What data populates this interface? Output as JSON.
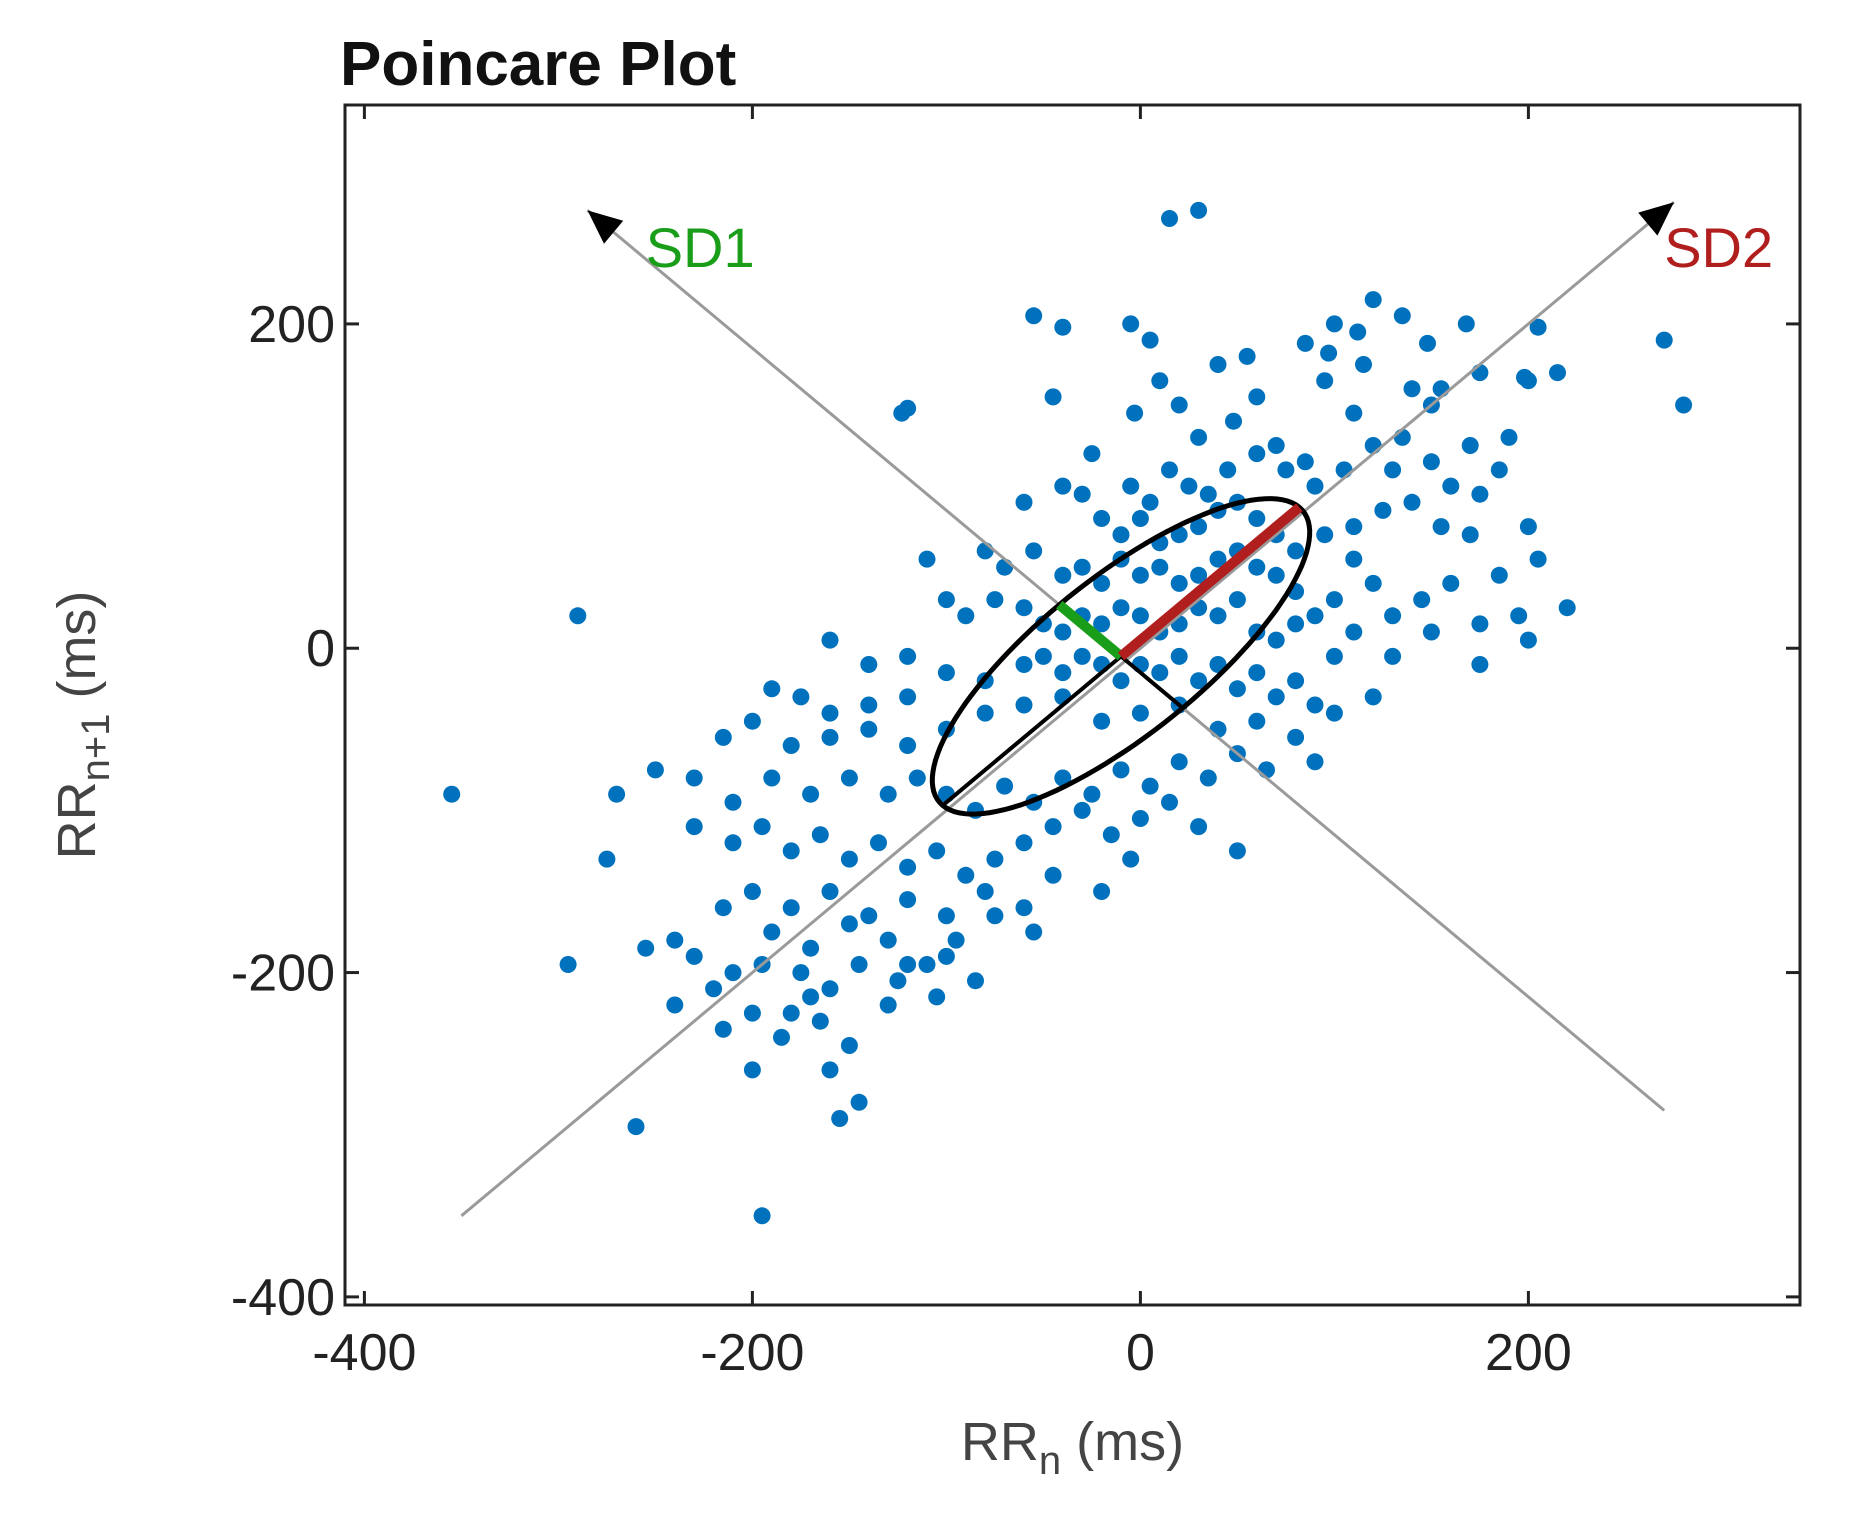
{
  "chart_data": {
    "type": "scatter",
    "title": "Poincare Plot",
    "xlabel": {
      "main": "RR",
      "sub": "n",
      "unit": " (ms)"
    },
    "ylabel": {
      "main": "RR",
      "sub": "n+1",
      "unit": " (ms)"
    },
    "xlim": [
      -410,
      340
    ],
    "ylim": [
      -405,
      335
    ],
    "xticks": [
      -400,
      -200,
      0,
      200
    ],
    "yticks": [
      -400,
      -200,
      0,
      200
    ],
    "xtick_labels": [
      "-400",
      "-200",
      "0",
      "200"
    ],
    "ytick_labels": [
      "-400",
      "-200",
      "0",
      "200"
    ],
    "grid": false,
    "point_color": "#0072BD",
    "annotations": {
      "sd1": {
        "text": "SD1",
        "color": "#1a9e1a"
      },
      "sd2": {
        "text": "SD2",
        "color": "#b01e1e"
      },
      "ellipse": {
        "center": [
          -10,
          -5
        ],
        "sd1": 45,
        "sd2": 130,
        "angle_deg": 45
      },
      "identity_line": {
        "from": [
          -350,
          -350
        ],
        "to": [
          275,
          275
        ]
      },
      "perpendicular_line": {
        "from": [
          -285,
          270
        ],
        "to": [
          270,
          -285
        ]
      }
    },
    "series": [
      {
        "points": [
          [
            30,
            270
          ],
          [
            15,
            265
          ],
          [
            -55,
            205
          ],
          [
            -40,
            198
          ],
          [
            -5,
            200
          ],
          [
            -45,
            155
          ],
          [
            5,
            190
          ],
          [
            120,
            215
          ],
          [
            100,
            200
          ],
          [
            112,
            195
          ],
          [
            135,
            205
          ],
          [
            168,
            200
          ],
          [
            205,
            198
          ],
          [
            270,
            190
          ],
          [
            215,
            170
          ],
          [
            198,
            167
          ],
          [
            148,
            188
          ],
          [
            97,
            182
          ],
          [
            85,
            188
          ],
          [
            55,
            180
          ],
          [
            40,
            175
          ],
          [
            20,
            150
          ],
          [
            10,
            165
          ],
          [
            -3,
            145
          ],
          [
            -123,
            145
          ],
          [
            -120,
            148
          ],
          [
            30,
            130
          ],
          [
            60,
            155
          ],
          [
            48,
            140
          ],
          [
            70,
            125
          ],
          [
            85,
            115
          ],
          [
            115,
            175
          ],
          [
            140,
            160
          ],
          [
            155,
            160
          ],
          [
            175,
            170
          ],
          [
            135,
            130
          ],
          [
            150,
            150
          ],
          [
            200,
            165
          ],
          [
            280,
            150
          ],
          [
            110,
            145
          ],
          [
            95,
            165
          ],
          [
            170,
            125
          ],
          [
            190,
            130
          ],
          [
            185,
            110
          ],
          [
            175,
            95
          ],
          [
            160,
            100
          ],
          [
            150,
            115
          ],
          [
            130,
            110
          ],
          [
            120,
            125
          ],
          [
            105,
            110
          ],
          [
            90,
            100
          ],
          [
            75,
            110
          ],
          [
            60,
            120
          ],
          [
            45,
            110
          ],
          [
            35,
            95
          ],
          [
            25,
            100
          ],
          [
            15,
            110
          ],
          [
            5,
            90
          ],
          [
            -5,
            100
          ],
          [
            -25,
            120
          ],
          [
            -40,
            100
          ],
          [
            -30,
            95
          ],
          [
            -60,
            90
          ],
          [
            -20,
            80
          ],
          [
            -10,
            70
          ],
          [
            0,
            80
          ],
          [
            10,
            65
          ],
          [
            20,
            70
          ],
          [
            30,
            75
          ],
          [
            40,
            85
          ],
          [
            50,
            90
          ],
          [
            60,
            80
          ],
          [
            70,
            70
          ],
          [
            80,
            60
          ],
          [
            95,
            70
          ],
          [
            110,
            75
          ],
          [
            125,
            85
          ],
          [
            140,
            90
          ],
          [
            155,
            75
          ],
          [
            170,
            70
          ],
          [
            200,
            75
          ],
          [
            205,
            55
          ],
          [
            185,
            45
          ],
          [
            195,
            20
          ],
          [
            175,
            15
          ],
          [
            160,
            40
          ],
          [
            145,
            30
          ],
          [
            130,
            20
          ],
          [
            120,
            40
          ],
          [
            110,
            55
          ],
          [
            100,
            30
          ],
          [
            90,
            20
          ],
          [
            80,
            35
          ],
          [
            70,
            45
          ],
          [
            60,
            50
          ],
          [
            50,
            60
          ],
          [
            40,
            55
          ],
          [
            30,
            45
          ],
          [
            20,
            40
          ],
          [
            10,
            50
          ],
          [
            0,
            45
          ],
          [
            -10,
            55
          ],
          [
            -20,
            40
          ],
          [
            -30,
            50
          ],
          [
            -40,
            45
          ],
          [
            -55,
            60
          ],
          [
            -70,
            50
          ],
          [
            -80,
            60
          ],
          [
            -110,
            55
          ],
          [
            -100,
            30
          ],
          [
            -90,
            20
          ],
          [
            -75,
            30
          ],
          [
            -60,
            25
          ],
          [
            -50,
            15
          ],
          [
            -40,
            10
          ],
          [
            -30,
            20
          ],
          [
            -20,
            15
          ],
          [
            -10,
            25
          ],
          [
            0,
            20
          ],
          [
            10,
            10
          ],
          [
            20,
            15
          ],
          [
            30,
            25
          ],
          [
            40,
            20
          ],
          [
            50,
            30
          ],
          [
            60,
            10
          ],
          [
            70,
            5
          ],
          [
            80,
            15
          ],
          [
            100,
            -5
          ],
          [
            110,
            10
          ],
          [
            130,
            -5
          ],
          [
            150,
            10
          ],
          [
            175,
            -10
          ],
          [
            200,
            5
          ],
          [
            220,
            25
          ],
          [
            -290,
            20
          ],
          [
            -160,
            5
          ],
          [
            -140,
            -10
          ],
          [
            -120,
            -5
          ],
          [
            -100,
            -15
          ],
          [
            -80,
            -20
          ],
          [
            -60,
            -10
          ],
          [
            -50,
            -5
          ],
          [
            -40,
            -15
          ],
          [
            -30,
            -5
          ],
          [
            -20,
            -10
          ],
          [
            -10,
            -20
          ],
          [
            0,
            -10
          ],
          [
            10,
            -15
          ],
          [
            20,
            -5
          ],
          [
            30,
            -20
          ],
          [
            40,
            -10
          ],
          [
            50,
            -25
          ],
          [
            60,
            -15
          ],
          [
            70,
            -30
          ],
          [
            80,
            -20
          ],
          [
            90,
            -35
          ],
          [
            100,
            -40
          ],
          [
            120,
            -30
          ],
          [
            -120,
            -30
          ],
          [
            -140,
            -35
          ],
          [
            -160,
            -40
          ],
          [
            -175,
            -30
          ],
          [
            -190,
            -25
          ],
          [
            -200,
            -45
          ],
          [
            -180,
            -60
          ],
          [
            -160,
            -55
          ],
          [
            -140,
            -50
          ],
          [
            -120,
            -60
          ],
          [
            -100,
            -50
          ],
          [
            -80,
            -40
          ],
          [
            -60,
            -35
          ],
          [
            -40,
            -30
          ],
          [
            -20,
            -45
          ],
          [
            0,
            -40
          ],
          [
            20,
            -35
          ],
          [
            40,
            -50
          ],
          [
            60,
            -45
          ],
          [
            80,
            -55
          ],
          [
            90,
            -70
          ],
          [
            65,
            -75
          ],
          [
            50,
            -65
          ],
          [
            35,
            -80
          ],
          [
            20,
            -70
          ],
          [
            5,
            -85
          ],
          [
            -10,
            -75
          ],
          [
            -25,
            -90
          ],
          [
            -40,
            -80
          ],
          [
            -55,
            -95
          ],
          [
            -70,
            -85
          ],
          [
            -85,
            -100
          ],
          [
            -100,
            -90
          ],
          [
            -115,
            -80
          ],
          [
            -130,
            -90
          ],
          [
            -150,
            -80
          ],
          [
            -170,
            -90
          ],
          [
            -190,
            -80
          ],
          [
            -210,
            -95
          ],
          [
            -230,
            -80
          ],
          [
            -250,
            -75
          ],
          [
            -270,
            -90
          ],
          [
            -355,
            -90
          ],
          [
            -215,
            -55
          ],
          [
            -230,
            -110
          ],
          [
            -210,
            -120
          ],
          [
            -195,
            -110
          ],
          [
            -180,
            -125
          ],
          [
            -165,
            -115
          ],
          [
            -150,
            -130
          ],
          [
            -135,
            -120
          ],
          [
            -120,
            -135
          ],
          [
            -105,
            -125
          ],
          [
            -90,
            -140
          ],
          [
            -75,
            -130
          ],
          [
            -60,
            -120
          ],
          [
            -45,
            -110
          ],
          [
            -30,
            -100
          ],
          [
            -15,
            -115
          ],
          [
            0,
            -105
          ],
          [
            15,
            -95
          ],
          [
            30,
            -110
          ],
          [
            50,
            -125
          ],
          [
            -45,
            -140
          ],
          [
            -20,
            -150
          ],
          [
            -5,
            -130
          ],
          [
            -60,
            -160
          ],
          [
            -80,
            -150
          ],
          [
            -100,
            -165
          ],
          [
            -120,
            -155
          ],
          [
            -140,
            -165
          ],
          [
            -160,
            -150
          ],
          [
            -180,
            -160
          ],
          [
            -200,
            -150
          ],
          [
            -215,
            -160
          ],
          [
            -190,
            -175
          ],
          [
            -170,
            -185
          ],
          [
            -150,
            -170
          ],
          [
            -130,
            -180
          ],
          [
            -110,
            -195
          ],
          [
            -95,
            -180
          ],
          [
            -75,
            -165
          ],
          [
            -55,
            -175
          ],
          [
            -240,
            -180
          ],
          [
            -255,
            -185
          ],
          [
            -230,
            -190
          ],
          [
            -210,
            -200
          ],
          [
            -195,
            -195
          ],
          [
            -175,
            -200
          ],
          [
            -160,
            -210
          ],
          [
            -145,
            -195
          ],
          [
            -125,
            -205
          ],
          [
            -105,
            -215
          ],
          [
            -85,
            -205
          ],
          [
            -240,
            -220
          ],
          [
            -215,
            -235
          ],
          [
            -200,
            -225
          ],
          [
            -185,
            -240
          ],
          [
            -165,
            -230
          ],
          [
            -150,
            -245
          ],
          [
            -160,
            -260
          ],
          [
            -145,
            -280
          ],
          [
            -155,
            -290
          ],
          [
            -200,
            -260
          ],
          [
            -295,
            -195
          ],
          [
            -275,
            -130
          ],
          [
            -260,
            -295
          ],
          [
            -195,
            -350
          ],
          [
            -180,
            -225
          ],
          [
            -130,
            -220
          ],
          [
            -120,
            -195
          ],
          [
            -100,
            -190
          ],
          [
            -170,
            -215
          ],
          [
            -220,
            -210
          ]
        ]
      }
    ]
  }
}
